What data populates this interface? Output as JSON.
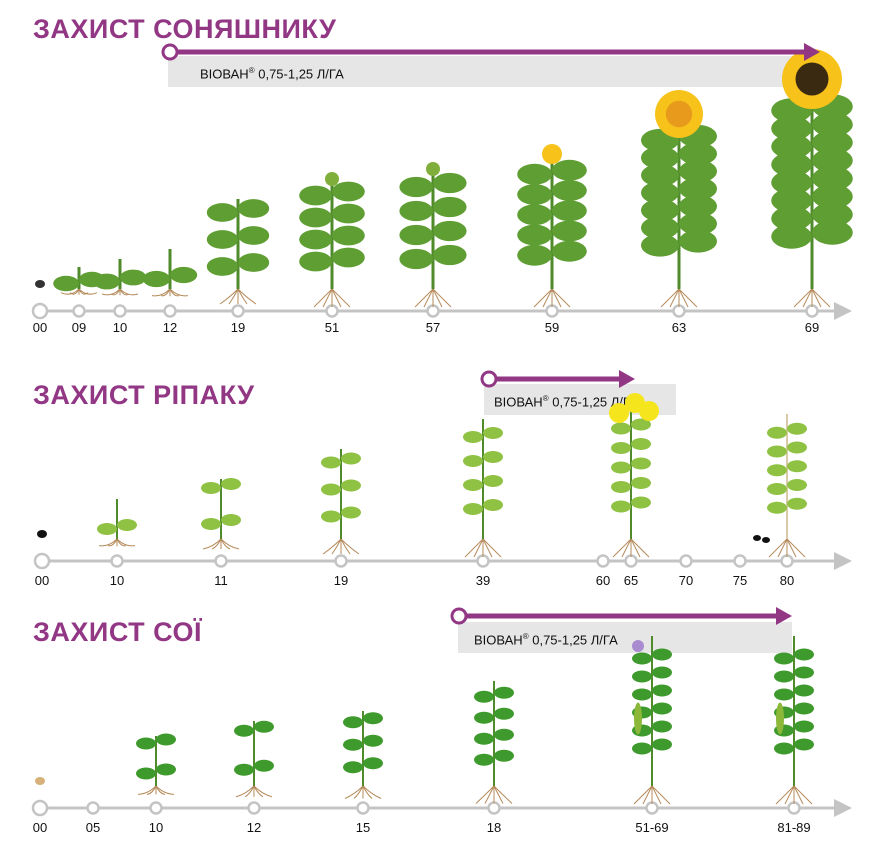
{
  "colors": {
    "accent": "#923784",
    "timeline": "#c4c4c4",
    "box": "#e6e6e6"
  },
  "sections": [
    {
      "title": "ЗАХИСТ СОНЯШНИКУ",
      "product": "ВІОВАН",
      "reg": "®",
      "dose": " 0,75-1,25 Л/ГА",
      "crop": "sunflower",
      "stages": [
        "00",
        "09",
        "10",
        "12",
        "19",
        "51",
        "57",
        "59",
        "63",
        "69"
      ],
      "treatment_from": "12",
      "treatment_to": "69"
    },
    {
      "title": "ЗАХИСТ РІПАКУ",
      "product": "ВІОВАН",
      "reg": "®",
      "dose": " 0,75-1,25 Л/ГА",
      "crop": "rapeseed",
      "stages": [
        "00",
        "10",
        "11",
        "19",
        "39",
        "60",
        "65",
        "70",
        "75",
        "80"
      ],
      "treatment_from": "39",
      "treatment_to": "60"
    },
    {
      "title": "ЗАХИСТ СОЇ",
      "product": "ВІОВАН",
      "reg": "®",
      "dose": " 0,75-1,25 Л/ГА",
      "crop": "soybean",
      "stages": [
        "00",
        "05",
        "10",
        "12",
        "15",
        "18",
        "51-69",
        "81-89"
      ],
      "treatment_from": "18",
      "treatment_to": "81-89"
    }
  ]
}
